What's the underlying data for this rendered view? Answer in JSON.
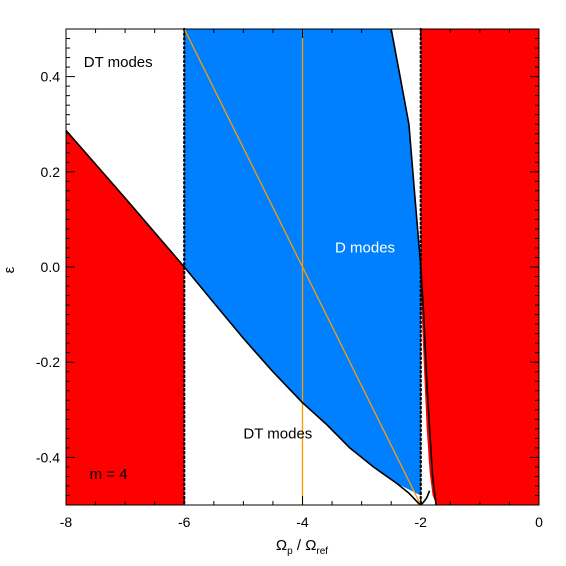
{
  "chart_data": {
    "type": "area",
    "title": "",
    "xlabel": "Ω_p / Ω_ref",
    "xlabel_main": "Ω",
    "xlabel_sub1": "p",
    "xlabel_slash": " / Ω",
    "xlabel_sub2": "ref",
    "ylabel": "ε",
    "xlim": [
      -8,
      0
    ],
    "ylim": [
      -0.5,
      0.5
    ],
    "x_ticks": [
      -8,
      -6,
      -4,
      -2,
      0
    ],
    "x_tick_labels": [
      "-8",
      "-6",
      "-4",
      "-2",
      "0"
    ],
    "y_ticks": [
      -0.4,
      -0.2,
      0.0,
      0.2,
      0.4
    ],
    "y_tick_labels": [
      "-0.4",
      "-0.2",
      "0.0",
      "0.2",
      "0.4"
    ],
    "grid": false,
    "colors": {
      "red": "#ff0000",
      "blue": "#0080ff",
      "orange": "#ff9900",
      "boundary": "#000000"
    },
    "regions": [
      {
        "name": "red-left",
        "color": "red",
        "polygon": [
          [
            -8,
            -0.5
          ],
          [
            -8,
            0.287
          ],
          [
            -6,
            0.0
          ],
          [
            -6,
            -0.5
          ]
        ]
      },
      {
        "name": "red-right",
        "color": "red",
        "polygon": [
          [
            -2,
            0.5
          ],
          [
            0,
            0.5
          ],
          [
            0,
            -0.5
          ],
          [
            -1.73,
            -0.5
          ],
          [
            -1.8,
            -0.48
          ],
          [
            -1.85,
            -0.43
          ],
          [
            -1.9,
            -0.34
          ],
          [
            -1.95,
            -0.2
          ],
          [
            -2,
            -0.05
          ],
          [
            -2,
            0.5
          ]
        ]
      },
      {
        "name": "blue-d-modes",
        "color": "blue",
        "polygon": [
          [
            -6,
            0.5
          ],
          [
            -2.5,
            0.5
          ],
          [
            -2.2,
            0.3
          ],
          [
            -2,
            0.0
          ],
          [
            -2,
            -0.48
          ],
          [
            -2.4,
            -0.455
          ],
          [
            -2.8,
            -0.42
          ],
          [
            -3.2,
            -0.38
          ],
          [
            -3.6,
            -0.33
          ],
          [
            -4,
            -0.285
          ],
          [
            -4.5,
            -0.22
          ],
          [
            -5,
            -0.15
          ],
          [
            -5.5,
            -0.075
          ],
          [
            -6,
            0.0
          ]
        ]
      }
    ],
    "boundary_curves": [
      {
        "name": "lower-boundary",
        "points": [
          [
            -8,
            0.287
          ],
          [
            -7,
            0.145
          ],
          [
            -6,
            0.0
          ],
          [
            -5.5,
            -0.075
          ],
          [
            -5,
            -0.15
          ],
          [
            -4.5,
            -0.22
          ],
          [
            -4,
            -0.285
          ],
          [
            -3.6,
            -0.33
          ],
          [
            -3.2,
            -0.38
          ],
          [
            -2.8,
            -0.42
          ],
          [
            -2.4,
            -0.455
          ],
          [
            -2.2,
            -0.475
          ],
          [
            -2.05,
            -0.495
          ],
          [
            -2,
            -0.5
          ]
        ]
      },
      {
        "name": "right-boundary",
        "points": [
          [
            -2.5,
            0.5
          ],
          [
            -2.35,
            0.4
          ],
          [
            -2.2,
            0.3
          ],
          [
            -2.1,
            0.15
          ],
          [
            -2,
            0.0
          ],
          [
            -1.95,
            -0.1
          ],
          [
            -1.9,
            -0.24
          ],
          [
            -1.85,
            -0.34
          ],
          [
            -1.8,
            -0.44
          ],
          [
            -1.76,
            -0.48
          ],
          [
            -1.74,
            -0.5
          ]
        ]
      },
      {
        "name": "bottom-hook",
        "points": [
          [
            -2,
            -0.5
          ],
          [
            -1.96,
            -0.495
          ],
          [
            -1.9,
            -0.485
          ],
          [
            -1.85,
            -0.47
          ]
        ]
      }
    ],
    "dotted_lines": [
      {
        "name": "dotted-x-minus6",
        "x": -6
      },
      {
        "name": "dotted-x-minus2",
        "x": -2
      }
    ],
    "orange_lines": [
      {
        "name": "orange-vertical",
        "points": [
          [
            -4,
            -0.5
          ],
          [
            -4,
            0.5
          ]
        ]
      },
      {
        "name": "orange-diagonal",
        "points": [
          [
            -6,
            0.5
          ],
          [
            -2,
            -0.5
          ]
        ]
      }
    ],
    "annotations": [
      {
        "name": "dt-modes-top-label",
        "text": "DT modes",
        "x": -7.7,
        "y": 0.42,
        "color": "#000000"
      },
      {
        "name": "d-modes-label",
        "text": "D modes",
        "x": -3.45,
        "y": 0.03,
        "color": "#ffffff"
      },
      {
        "name": "dt-modes-bottom-label",
        "text": "DT modes",
        "x": -5.0,
        "y": -0.36,
        "color": "#000000"
      },
      {
        "name": "m-equals-label",
        "text": "m = 4",
        "x": -7.6,
        "y": -0.445,
        "color": "#000000"
      }
    ]
  }
}
